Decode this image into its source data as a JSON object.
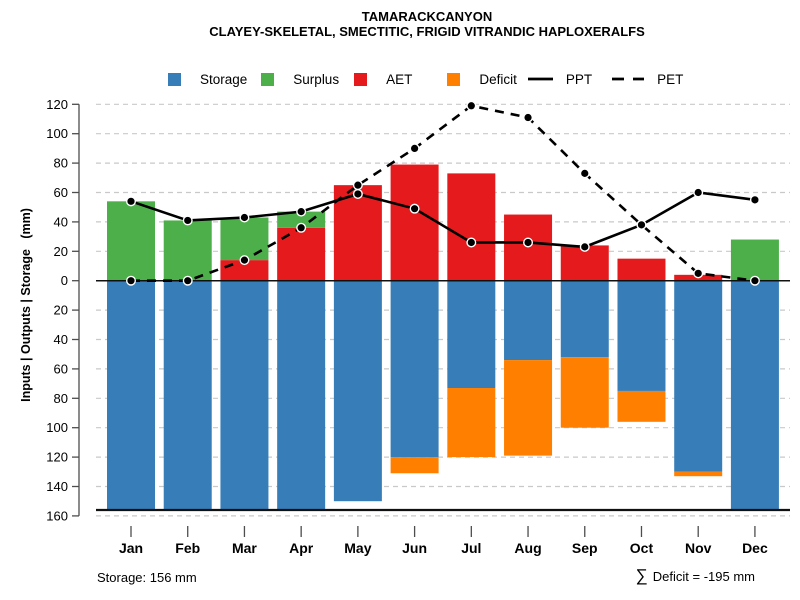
{
  "title": "TAMARACKCANYON",
  "subtitle": "CLAYEY-SKELETAL, SMECTITIC, FRIGID VITRANDIC HAPLOXERALFS",
  "legend": {
    "items": [
      {
        "label": "Storage",
        "type": "box",
        "color": "#377EB8"
      },
      {
        "label": "Surplus",
        "type": "box",
        "color": "#4DAF4A"
      },
      {
        "label": "AET",
        "type": "box",
        "color": "#E41A1C"
      },
      {
        "label": "Deficit",
        "type": "box",
        "color": "#FF7F00"
      },
      {
        "label": "PPT",
        "type": "line-solid",
        "color": "#000000"
      },
      {
        "label": "PET",
        "type": "line-dashed",
        "color": "#000000"
      }
    ]
  },
  "y_axis": {
    "label": "Inputs | Outputs | Storage   (mm)",
    "tick_values": [
      120,
      100,
      80,
      60,
      40,
      20,
      0,
      -20,
      -40,
      -60,
      -80,
      -100,
      -120,
      -140,
      -160
    ]
  },
  "footer": {
    "left": "Storage: 156 mm",
    "sigma": "∑",
    "right": "Deficit = -195 mm"
  },
  "chart_data": {
    "type": "bar",
    "subtype": "stacked-bar-with-lines-water-balance",
    "categories": [
      "Jan",
      "Feb",
      "Mar",
      "Apr",
      "May",
      "Jun",
      "Jul",
      "Aug",
      "Sep",
      "Oct",
      "Nov",
      "Dec"
    ],
    "bar_series": [
      {
        "name": "AET",
        "color": "#E41A1C",
        "direction": "up",
        "stack_order": 1,
        "values": [
          0,
          0,
          14,
          36,
          65,
          79,
          73,
          45,
          24,
          15,
          4,
          0
        ]
      },
      {
        "name": "Surplus",
        "color": "#4DAF4A",
        "direction": "up",
        "stack_order": 2,
        "values": [
          54,
          41,
          29,
          11,
          0,
          0,
          0,
          0,
          0,
          0,
          0,
          28
        ]
      },
      {
        "name": "Storage",
        "color": "#377EB8",
        "direction": "down",
        "stack_order": 1,
        "values": [
          156,
          156,
          156,
          156,
          150,
          120,
          73,
          54,
          52,
          75,
          130,
          156
        ]
      },
      {
        "name": "Deficit",
        "color": "#FF7F00",
        "direction": "down",
        "stack_order": 2,
        "values": [
          0,
          0,
          0,
          0,
          0,
          11,
          47,
          65,
          48,
          21,
          3,
          0
        ]
      }
    ],
    "line_series": [
      {
        "name": "PPT",
        "style": "solid",
        "color": "#000000",
        "values": [
          54,
          41,
          43,
          47,
          59,
          49,
          26,
          26,
          23,
          38,
          60,
          55
        ]
      },
      {
        "name": "PET",
        "style": "dashed",
        "color": "#000000",
        "values": [
          0,
          0,
          14,
          36,
          65,
          90,
          119,
          111,
          73,
          38,
          5,
          0
        ]
      }
    ],
    "ylim": [
      -160,
      120
    ],
    "y_tick_step": 20,
    "y_tick_labels_absolute": true,
    "reference_lines": [
      {
        "value": 0
      },
      {
        "value": -156
      }
    ],
    "grid": "dashed-horizontal",
    "max_storage_mm": 156,
    "total_deficit_mm": -195
  }
}
